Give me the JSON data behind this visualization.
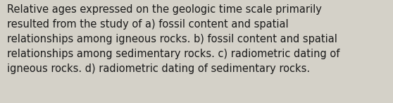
{
  "lines": [
    "Relative ages expressed on the geologic time scale primarily",
    "resulted from the study of a) fossil content and spatial",
    "relationships among igneous rocks. b) fossil content and spatial",
    "relationships among sedimentary rocks. c) radiometric dating of",
    "igneous rocks. d) radiometric dating of sedimentary rocks."
  ],
  "background_color": "#d4d1c8",
  "text_color": "#1a1a1a",
  "font_size": 10.5,
  "fig_width": 5.58,
  "fig_height": 1.46,
  "linespacing": 1.5
}
